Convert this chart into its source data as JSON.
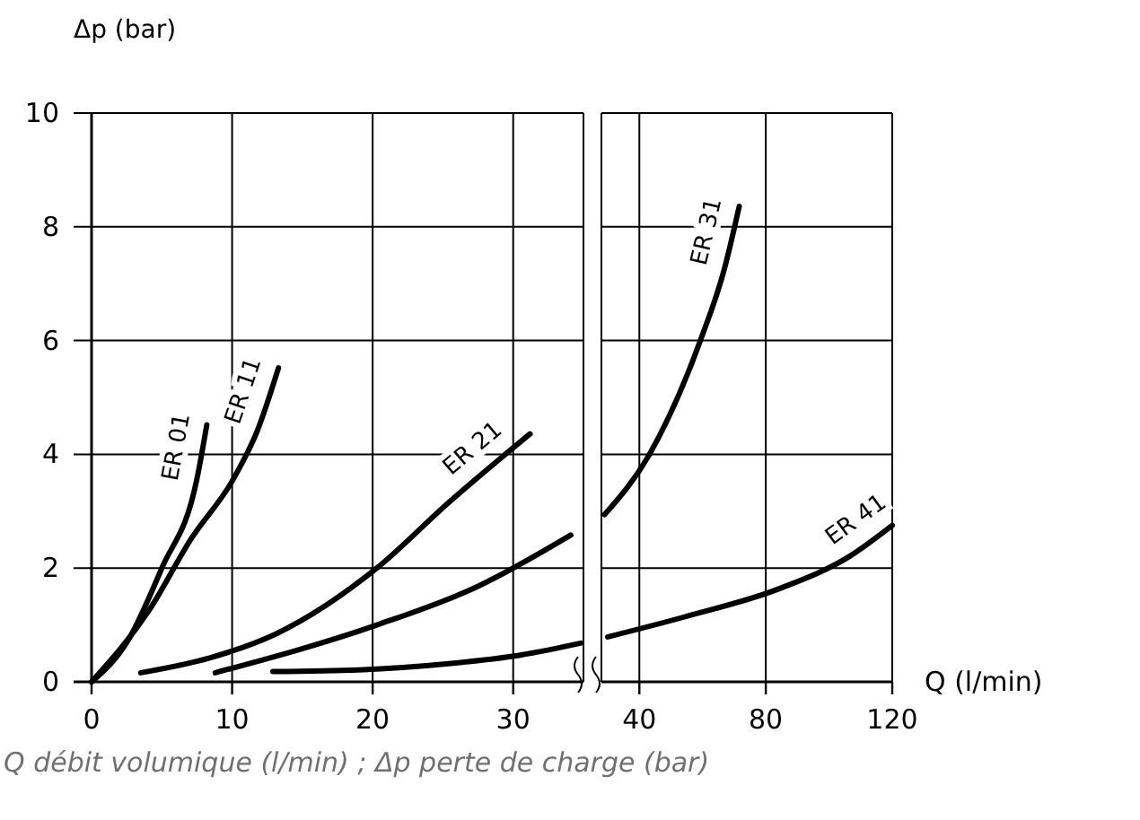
{
  "chart_data": [
    {
      "type": "line",
      "ylabel": "Δp  (bar)",
      "xlim": [
        0,
        35
      ],
      "xticks": [
        0,
        10,
        20,
        30
      ],
      "ylim": [
        0,
        10
      ],
      "yticks": [
        0,
        2,
        4,
        6,
        8,
        10
      ],
      "grid": true,
      "marker": "none",
      "line_style": "solid",
      "series": [
        {
          "name": "ER 01",
          "color": "#000000",
          "x": [
            0,
            2.6,
            5.0,
            7.5,
            8.2
          ],
          "values": [
            0,
            0.73,
            2.0,
            3.57,
            4.52
          ]
        },
        {
          "name": "ER 11",
          "color": "#000000",
          "x": [
            0,
            4.1,
            7.1,
            10.1,
            11.8,
            13.3
          ],
          "values": [
            0,
            1.26,
            2.52,
            3.57,
            4.42,
            5.52
          ]
        },
        {
          "name": "ER 21",
          "color": "#000000",
          "x": [
            3.5,
            8.4,
            13.1,
            20.3,
            25.4,
            31.2
          ],
          "values": [
            0.16,
            0.42,
            0.84,
            2.0,
            3.15,
            4.36
          ]
        },
        {
          "color": "#000000",
          "x": [
            8.8,
            20.3,
            27.5,
            34.1
          ],
          "values": [
            0.16,
            1.0,
            1.68,
            2.58
          ]
        },
        {
          "color": "#000000",
          "x": [
            12.9,
            19.0,
            25.4,
            30.5,
            34.8
          ],
          "values": [
            0.18,
            0.21,
            0.32,
            0.47,
            0.68
          ]
        }
      ]
    },
    {
      "type": "line",
      "xlabel": "Q  (l/min)",
      "xlim": [
        28,
        120
      ],
      "xticks": [
        40,
        80,
        120
      ],
      "ylim": [
        0,
        10
      ],
      "yticks": [
        0,
        2,
        4,
        6,
        8,
        10
      ],
      "tick_labels": "x",
      "grid": true,
      "marker": "none",
      "line_style": "solid",
      "annotations": [
        "Q débit volumique (l/min) ; Δp perte de charge (bar)"
      ],
      "series": [
        {
          "name": "ER 31",
          "color": "#000000",
          "x": [
            29,
            43.2,
            59.3,
            66.9,
            71.6
          ],
          "values": [
            2.94,
            4.0,
            6.0,
            7.26,
            8.36
          ]
        },
        {
          "name": "ER 41",
          "color": "#000000",
          "x": [
            30,
            55.5,
            83.9,
            106.6,
            120
          ],
          "values": [
            0.79,
            1.16,
            1.63,
            2.21,
            2.75
          ]
        }
      ]
    }
  ]
}
